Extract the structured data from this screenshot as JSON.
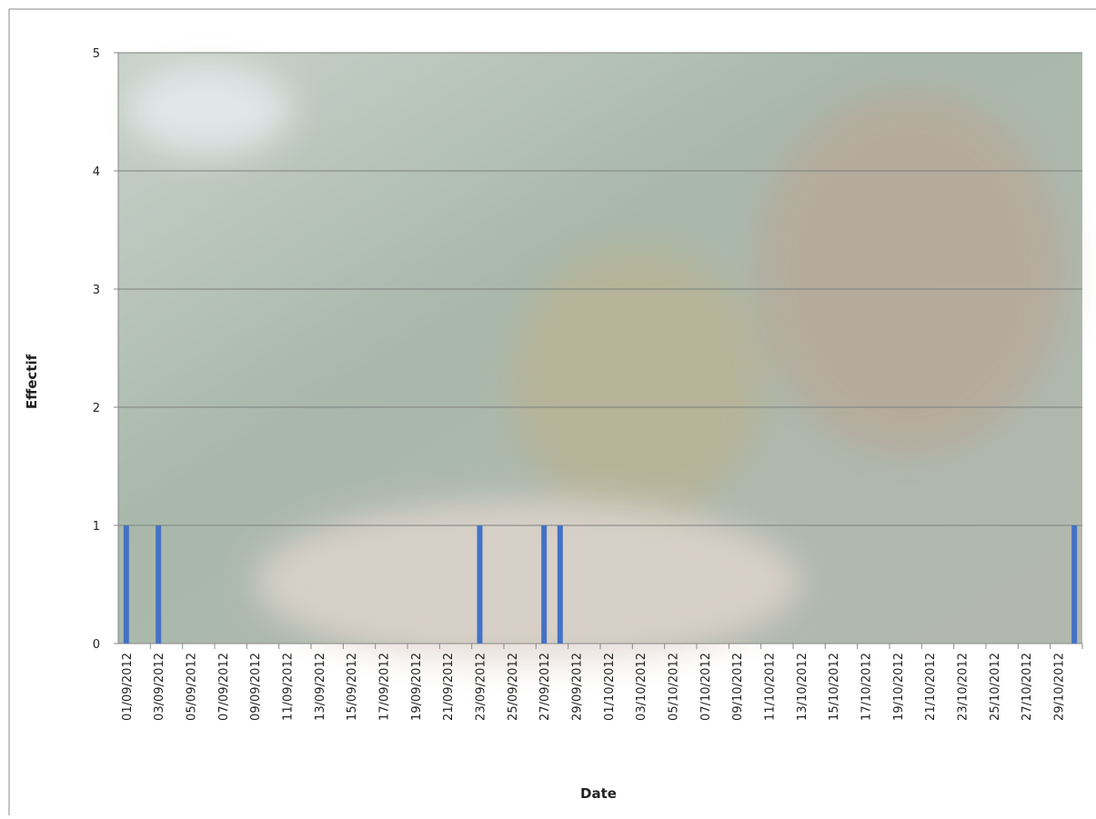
{
  "chart_data": {
    "type": "bar",
    "x_label": "Date",
    "y_label": "Effectif",
    "color": "#4472c4",
    "categories": [
      "01/09/2012",
      null,
      "03/09/2012",
      null,
      "05/09/2012",
      null,
      "07/09/2012",
      null,
      "09/09/2012",
      null,
      "11/09/2012",
      null,
      "13/09/2012",
      null,
      "15/09/2012",
      null,
      "17/09/2012",
      null,
      "19/09/2012",
      null,
      "21/09/2012",
      null,
      "23/09/2012",
      null,
      "25/09/2012",
      null,
      "27/09/2012",
      null,
      "29/09/2012",
      null,
      "01/10/2012",
      null,
      "03/10/2012",
      null,
      "05/10/2012",
      null,
      "07/10/2012",
      null,
      "09/10/2012",
      null,
      "11/10/2012",
      null,
      "13/10/2012",
      null,
      "15/10/2012",
      null,
      "17/10/2012",
      null,
      "19/10/2012",
      null,
      "21/10/2012",
      null,
      "23/10/2012",
      null,
      "25/10/2012",
      null,
      "27/10/2012",
      null,
      "29/10/2012",
      null
    ],
    "values": [
      1,
      0,
      1,
      0,
      0,
      0,
      0,
      0,
      0,
      0,
      0,
      0,
      0,
      0,
      0,
      0,
      0,
      0,
      0,
      0,
      0,
      0,
      1,
      0,
      0,
      0,
      1,
      1,
      0,
      0,
      0,
      0,
      0,
      0,
      0,
      0,
      0,
      0,
      0,
      0,
      0,
      0,
      0,
      0,
      0,
      0,
      0,
      0,
      0,
      0,
      0,
      0,
      0,
      0,
      0,
      0,
      0,
      0,
      0,
      1
    ],
    "ylim": [
      0,
      5
    ],
    "yticks": [
      0,
      1,
      2,
      3,
      4,
      5
    ],
    "grid": true
  }
}
